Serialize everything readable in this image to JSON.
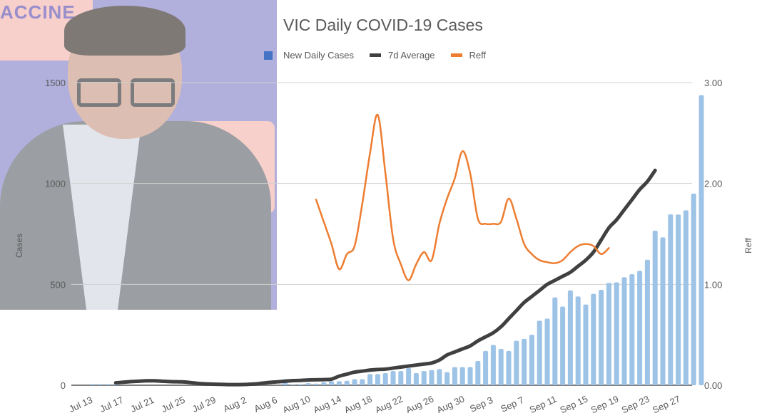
{
  "chart_data": {
    "type": "bar+line",
    "title": "VIC Daily COVID-19 Cases",
    "xlabel": "",
    "ylabel": "Cases",
    "y2label": "Reff",
    "ylim": [
      0,
      1500
    ],
    "y2lim": [
      0,
      3
    ],
    "yticks": [
      "0",
      "500",
      "1000",
      "1500"
    ],
    "y2ticks": [
      "0.00",
      "1.00",
      "2.00",
      "3.00"
    ],
    "grid": true,
    "legend_position": "top",
    "legend": [
      {
        "name": "New Daily Cases",
        "type": "bar",
        "color": "#9dc3e6"
      },
      {
        "name": "7d Average",
        "type": "line",
        "color": "#404040"
      },
      {
        "name": "Reff",
        "type": "line",
        "color": "#ed7d31"
      }
    ],
    "xtick_labels": [
      "Jul 13",
      "Jul 17",
      "Jul 21",
      "Jul 25",
      "Jul 29",
      "Aug 2",
      "Aug 6",
      "Aug 10",
      "Aug 14",
      "Aug 18",
      "Aug 22",
      "Aug 26",
      "Aug 30",
      "Sep 3",
      "Sep 7",
      "Sep 11",
      "Sep 15",
      "Sep 19",
      "Sep 23",
      "Sep 27"
    ],
    "start_date": "Jul 13",
    "series": [
      {
        "name": "New Daily Cases",
        "axis": "left",
        "start_day": 0,
        "values": [
          0,
          6,
          6,
          6,
          8,
          0,
          0,
          0,
          0,
          0,
          0,
          0,
          0,
          0,
          0,
          0,
          0,
          0,
          0,
          0,
          0,
          0,
          0,
          0,
          0,
          0,
          30,
          2,
          5,
          10,
          8,
          15,
          20,
          20,
          22,
          30,
          30,
          55,
          55,
          60,
          70,
          70,
          85,
          60,
          70,
          75,
          80,
          65,
          90,
          90,
          90,
          120,
          170,
          200,
          180,
          170,
          220,
          230,
          250,
          320,
          330,
          435,
          390,
          470,
          440,
          400,
          453,
          473,
          507,
          510,
          535,
          550,
          567,
          622,
          766,
          733,
          847,
          846,
          867,
          950,
          1438
        ],
        "note": "values read from pixel heights, approximate"
      },
      {
        "name": "7d Average",
        "axis": "left",
        "start_day": 4,
        "values": [
          12,
          15,
          18,
          20,
          22,
          22,
          20,
          18,
          17,
          16,
          12,
          8,
          6,
          5,
          4,
          3,
          3,
          4,
          6,
          10,
          14,
          17,
          20,
          23,
          24,
          26,
          27,
          28,
          30,
          45,
          55,
          65,
          70,
          75,
          78,
          80,
          85,
          90,
          95,
          100,
          105,
          110,
          125,
          150,
          165,
          180,
          195,
          220,
          240,
          260,
          290,
          330,
          370,
          410,
          440,
          470,
          500,
          520,
          540,
          560,
          590,
          620,
          660,
          720,
          780,
          820,
          870,
          920,
          970,
          1010,
          1065
        ],
        "note": "approximate"
      },
      {
        "name": "Reff",
        "axis": "right",
        "start_day": 30,
        "values": [
          1.84,
          1.62,
          1.4,
          1.15,
          1.3,
          1.38,
          1.8,
          2.3,
          2.68,
          2.1,
          1.45,
          1.2,
          1.04,
          1.2,
          1.32,
          1.24,
          1.6,
          1.85,
          2.05,
          2.32,
          2.1,
          1.65,
          1.6,
          1.6,
          1.62,
          1.85,
          1.65,
          1.4,
          1.3,
          1.24,
          1.22,
          1.21,
          1.24,
          1.32,
          1.38,
          1.4,
          1.38,
          1.3,
          1.36
        ],
        "note": "approximate"
      }
    ]
  }
}
